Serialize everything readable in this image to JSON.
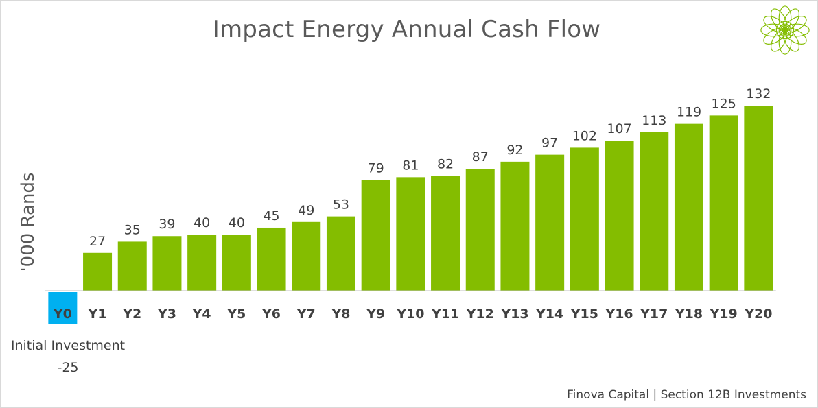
{
  "chart_data": {
    "type": "bar",
    "title": "Impact Energy Annual Cash Flow",
    "ylabel": "'000 Rands",
    "categories": [
      "Y0",
      "Y1",
      "Y2",
      "Y3",
      "Y4",
      "Y5",
      "Y6",
      "Y7",
      "Y8",
      "Y9",
      "Y10",
      "Y11",
      "Y12",
      "Y13",
      "Y14",
      "Y15",
      "Y16",
      "Y17",
      "Y18",
      "Y19",
      "Y20"
    ],
    "values": [
      -25,
      27,
      35,
      39,
      40,
      40,
      45,
      49,
      53,
      79,
      81,
      82,
      87,
      92,
      97,
      102,
      107,
      113,
      119,
      125,
      132
    ],
    "data_labels": [
      "",
      "27",
      "35",
      "39",
      "40",
      "40",
      "45",
      "49",
      "53",
      "79",
      "81",
      "82",
      "87",
      "92",
      "97",
      "102",
      "107",
      "113",
      "119",
      "125",
      "132"
    ],
    "bar_color": "#84bd00",
    "highlight_category_color": "#00b0f0",
    "annotation": {
      "label": "Initial Investment",
      "value": "-25"
    },
    "grid": false,
    "legend": "none"
  },
  "footer": {
    "credit": "Finova Capital | Section 12B Investments"
  },
  "logo": {
    "icon": "mandala-logo-icon",
    "color": "#84bd00"
  }
}
